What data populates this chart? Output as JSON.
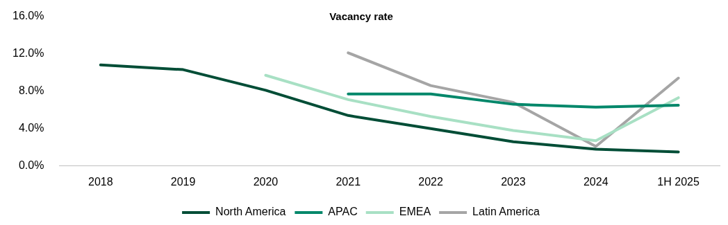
{
  "chart_data": {
    "type": "line",
    "title": "Vacancy rate",
    "categories": [
      "2018",
      "2019",
      "2020",
      "2021",
      "2022",
      "2023",
      "2024",
      "1H 2025"
    ],
    "series": [
      {
        "name": "North America",
        "color": "#004d36",
        "values": [
          10.8,
          10.3,
          8.1,
          5.4,
          4.0,
          2.6,
          1.8,
          1.5
        ]
      },
      {
        "name": "APAC",
        "color": "#00876a",
        "values": [
          null,
          null,
          null,
          7.7,
          7.7,
          6.6,
          6.3,
          6.5
        ]
      },
      {
        "name": "EMEA",
        "color": "#a8e0c4",
        "values": [
          null,
          null,
          9.7,
          7.1,
          5.3,
          3.8,
          2.7,
          7.3
        ]
      },
      {
        "name": "Latin America",
        "color": "#a5a5a5",
        "values": [
          null,
          null,
          null,
          12.1,
          8.6,
          6.8,
          2.1,
          9.4
        ]
      }
    ],
    "ylim": [
      0,
      16
    ],
    "yticks": [
      {
        "value": 0,
        "label": "0.0%"
      },
      {
        "value": 4,
        "label": "4.0%"
      },
      {
        "value": 8,
        "label": "8.0%"
      },
      {
        "value": 12,
        "label": "12.0%"
      },
      {
        "value": 16,
        "label": "16.0%"
      }
    ],
    "grid": false,
    "legend": "bottom",
    "marker": "none",
    "line_style": "solid"
  }
}
